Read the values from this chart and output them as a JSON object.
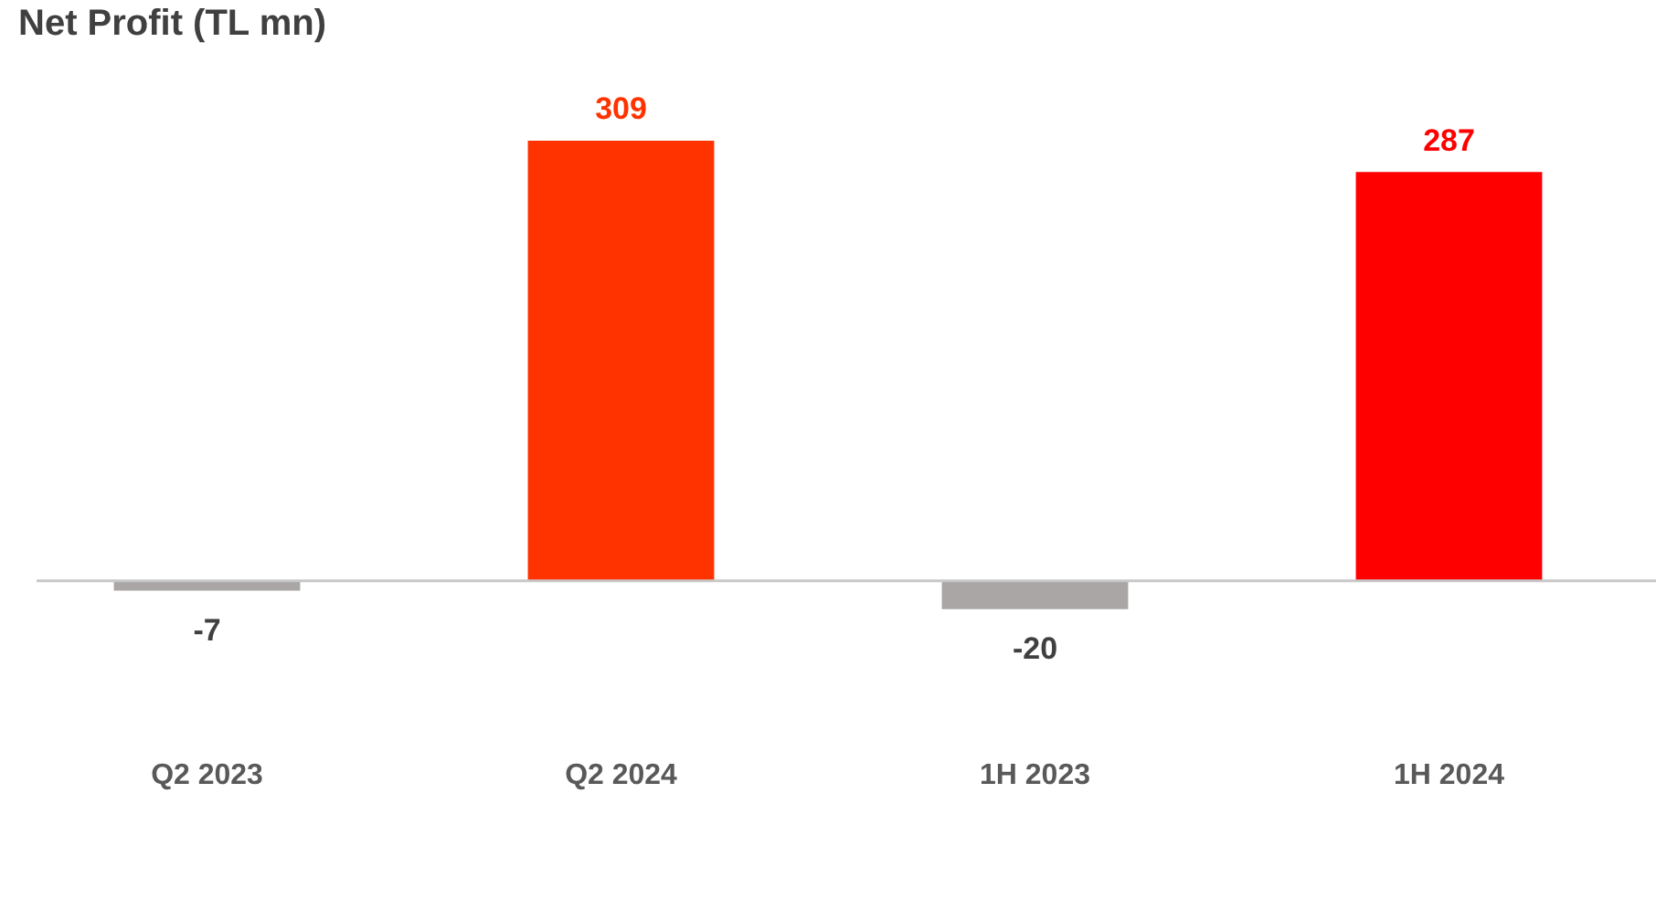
{
  "chart_data": {
    "type": "bar",
    "title": "Net Profit (TL mn)",
    "categories": [
      "Q2 2023",
      "Q2 2024",
      "1H 2023",
      "1H 2024"
    ],
    "values": [
      -7,
      309,
      -20,
      287
    ],
    "colors": [
      "#aaa6a6",
      "#ff3300",
      "#aaa6a6",
      "#ff0000"
    ],
    "data_labels": true,
    "grid": false,
    "legend": false
  }
}
